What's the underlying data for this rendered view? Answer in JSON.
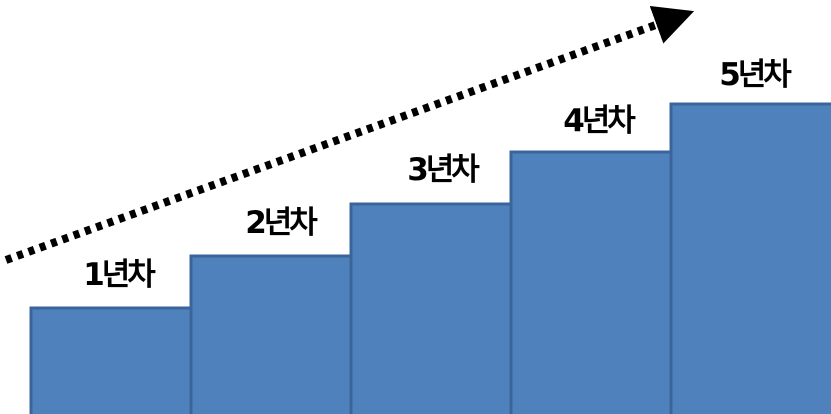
{
  "steps": [
    {
      "label": "1년차",
      "level": 1
    },
    {
      "label": "2년차",
      "level": 2
    },
    {
      "label": "3년차",
      "level": 3
    },
    {
      "label": "4년차",
      "level": 4
    },
    {
      "label": "5년차",
      "level": 5
    }
  ],
  "colors": {
    "bar_fill": "#4F81BD",
    "bar_stroke": "#3B659A",
    "arrow": "#000000",
    "text": "#000000"
  },
  "icons": {
    "trend": "dotted-arrow-icon"
  }
}
